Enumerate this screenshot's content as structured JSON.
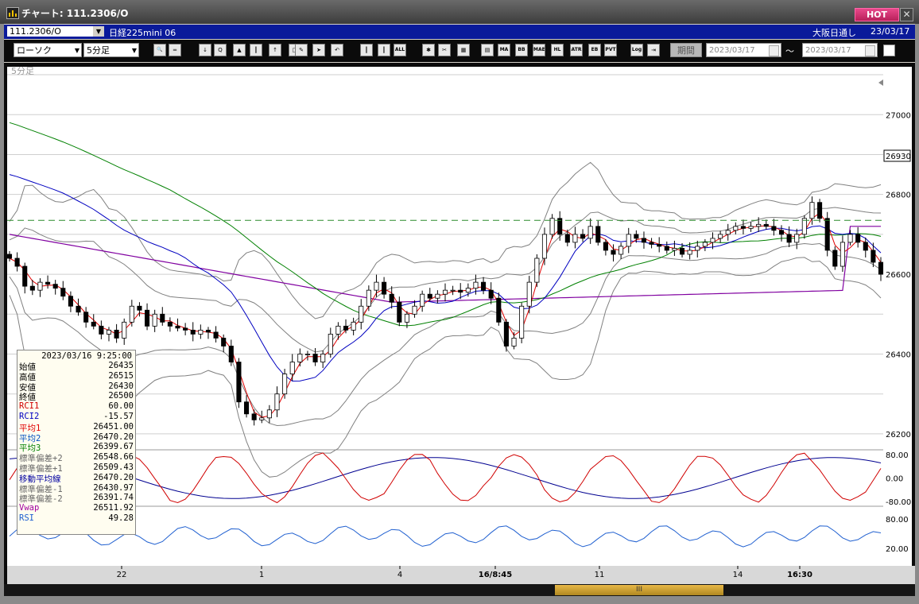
{
  "window": {
    "title": "チャート: 111.2306/O",
    "hot_label": "HOT",
    "close_label": "✕"
  },
  "symbol_bar": {
    "code": "111.2306/O",
    "name": "日経225mini 06",
    "market": "大阪日通し",
    "date": "23/03/17"
  },
  "toolbar": {
    "chart_type": "ローソク",
    "interval": "5分足",
    "period_label": "期間",
    "from_date": "2023/03/17",
    "to_date": "2023/03/17",
    "tilde": "～",
    "buttons": [
      {
        "name": "zoom-icon",
        "label": "🔍"
      },
      {
        "name": "split-icon",
        "label": "═"
      },
      {
        "name": "arrow-down-icon",
        "label": "↓"
      },
      {
        "name": "search-chart-icon",
        "label": "Q"
      },
      {
        "name": "bars-up-icon",
        "label": "▲"
      },
      {
        "name": "bars-icon",
        "label": "┃"
      },
      {
        "name": "pointer-up-icon",
        "label": "↑"
      },
      {
        "name": "disabled-icon",
        "label": "□"
      },
      {
        "name": "pen-icon",
        "label": "✎"
      },
      {
        "name": "cursor-icon",
        "label": "➤"
      },
      {
        "name": "undo-icon",
        "label": "↶"
      },
      {
        "name": "candle-one-icon",
        "label": "┃"
      },
      {
        "name": "candle-two-icon",
        "label": "┃"
      },
      {
        "name": "all-icon",
        "label": "ALL"
      },
      {
        "name": "settings-icon",
        "label": "✱"
      },
      {
        "name": "tools-icon",
        "label": "✂"
      },
      {
        "name": "color-icon",
        "label": "▦"
      },
      {
        "name": "grid-icon",
        "label": "▤"
      },
      {
        "name": "ma-icon",
        "label": "MA"
      },
      {
        "name": "bb-icon",
        "label": "BB"
      },
      {
        "name": "mae-icon",
        "label": "MAE"
      },
      {
        "name": "hl-icon",
        "label": "HL"
      },
      {
        "name": "atr-icon",
        "label": "ATR"
      },
      {
        "name": "eb-icon",
        "label": "EB"
      },
      {
        "name": "pvt-icon",
        "label": "PVT"
      },
      {
        "name": "log-icon",
        "label": "Log"
      },
      {
        "name": "export-icon",
        "label": "⇥"
      }
    ]
  },
  "chart_data": {
    "type": "line",
    "panel_label": "5分足",
    "price_axis": {
      "ticks": [
        27000,
        26800,
        26600,
        26400,
        26200
      ],
      "range": [
        26160,
        27120
      ],
      "current": "26930",
      "dashed_level": 26735
    },
    "time_axis": {
      "ticks": [
        "22",
        "1",
        "4",
        "16/8:45",
        "11",
        "14",
        "16:30"
      ]
    },
    "oscillator_axis": {
      "ticks": [
        "80.00",
        "0.00",
        "-80.00"
      ]
    },
    "rsi_axis": {
      "ticks": [
        "80.00",
        "20.00"
      ]
    },
    "close_path": [
      26640,
      26620,
      26570,
      26560,
      26580,
      26575,
      26565,
      26545,
      26520,
      26505,
      26480,
      26470,
      26450,
      26460,
      26440,
      26480,
      26520,
      26510,
      26470,
      26500,
      26480,
      26470,
      26465,
      26460,
      26450,
      26460,
      26455,
      26440,
      26420,
      26380,
      26280,
      26250,
      26235,
      26240,
      26260,
      26300,
      26350,
      26380,
      26400,
      26400,
      26380,
      26400,
      26450,
      26470,
      26460,
      26480,
      26520,
      26560,
      26580,
      26550,
      26530,
      26480,
      26500,
      26520,
      26550,
      26540,
      26550,
      26560,
      26560,
      26555,
      26565,
      26580,
      26560,
      26540,
      26480,
      26420,
      26440,
      26520,
      26580,
      26640,
      26700,
      26740,
      26700,
      26680,
      26700,
      26690,
      26720,
      26680,
      26660,
      26650,
      26670,
      26700,
      26690,
      26680,
      26675,
      26670,
      26660,
      26665,
      26650,
      26660,
      26670,
      26680,
      26690,
      26700,
      26710,
      26720,
      26715,
      26720,
      26725,
      26720,
      26710,
      26700,
      26680,
      26700,
      26740,
      26780,
      26740,
      26660,
      26620,
      26680,
      26700,
      26680,
      26660,
      26630,
      26600
    ],
    "vwap": 26511.92,
    "averages": {
      "ma1": 26451.0,
      "ma2": 26470.2,
      "ma3": 26399.67
    }
  },
  "info_panel": {
    "timestamp": "2023/03/16 9:25:00",
    "rows": [
      {
        "label": "始値",
        "value": "26435",
        "color": "#000000"
      },
      {
        "label": "高値",
        "value": "26515",
        "color": "#000000"
      },
      {
        "label": "安値",
        "value": "26430",
        "color": "#000000"
      },
      {
        "label": "終値",
        "value": "26500",
        "color": "#000000"
      },
      {
        "label": "RCI1",
        "value": "60.00",
        "color": "#d00000"
      },
      {
        "label": "RCI2",
        "value": "-15.57",
        "color": "#0000c0"
      },
      {
        "label": "平均1",
        "value": "26451.00",
        "color": "#e00000"
      },
      {
        "label": "平均2",
        "value": "26470.20",
        "color": "#0050c0"
      },
      {
        "label": "平均3",
        "value": "26399.67",
        "color": "#008000"
      },
      {
        "label": "標準偏差+2",
        "value": "26548.66",
        "color": "#666666"
      },
      {
        "label": "標準偏差+1",
        "value": "26509.43",
        "color": "#666666"
      },
      {
        "label": "移動平均線",
        "value": "26470.20",
        "color": "#0000a0"
      },
      {
        "label": "標準偏差-1",
        "value": "26430.97",
        "color": "#666666"
      },
      {
        "label": "標準偏差-2",
        "value": "26391.74",
        "color": "#666666"
      },
      {
        "label": "Vwap",
        "value": "26511.92",
        "color": "#a000a0"
      },
      {
        "label": "RSI",
        "value": "49.28",
        "color": "#2060d0"
      }
    ]
  },
  "colors": {
    "ma1": "#e00000",
    "ma2": "#0000c0",
    "ma3": "#008000",
    "vwap": "#8000a0",
    "rsi": "#2060d0",
    "rci1": "#d00000",
    "rci2": "#000090",
    "band": "#808080"
  },
  "scrollbar": {
    "thumb_label": "III"
  }
}
